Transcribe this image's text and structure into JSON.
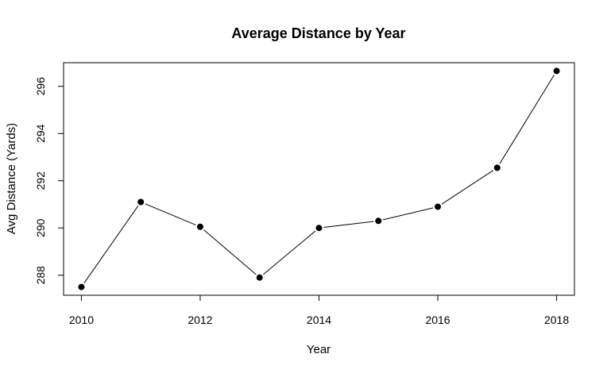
{
  "chart_data": {
    "type": "line",
    "title": "Average Distance by Year",
    "xlabel": "Year",
    "ylabel": "Avg Distance (Yards)",
    "x": [
      2010,
      2011,
      2012,
      2013,
      2014,
      2015,
      2016,
      2017,
      2018
    ],
    "series": [
      {
        "values": [
          287.5,
          291.1,
          290.05,
          287.9,
          290.0,
          290.3,
          290.9,
          292.55,
          296.65
        ]
      }
    ],
    "xticks": [
      "2010",
      "2012",
      "2014",
      "2016",
      "2018"
    ],
    "yticks": [
      "288",
      "290",
      "292",
      "294",
      "296"
    ],
    "xlim": [
      2009.7,
      2018.3
    ],
    "ylim": [
      287.15,
      297.0
    ],
    "grid": false,
    "legend": "none",
    "line_color": "#000000",
    "marker": "filled-circle"
  }
}
